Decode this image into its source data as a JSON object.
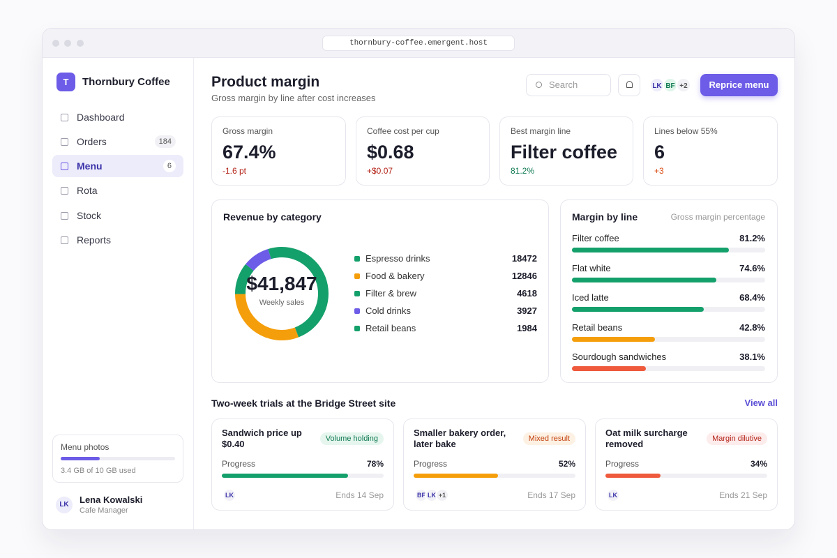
{
  "browser": {
    "url": "thornbury-coffee.emergent.host"
  },
  "sidebar": {
    "brand_initial": "T",
    "brand": "Thornbury Coffee",
    "nav": [
      {
        "label": "Dashboard"
      },
      {
        "label": "Orders",
        "badge": 184
      },
      {
        "label": "Menu",
        "badge": 6,
        "active": true
      },
      {
        "label": "Rota"
      },
      {
        "label": "Stock"
      },
      {
        "label": "Reports"
      }
    ],
    "storage": {
      "title": "Menu photos",
      "used": 3.4,
      "total": 10,
      "label": "3.4 GB of 10 GB used"
    },
    "user": {
      "initials": "LK",
      "name": "Lena Kowalski",
      "role": "Cafe Manager"
    }
  },
  "header": {
    "title": "Product margin",
    "subtitle": "Gross margin by line after cost increases",
    "search_placeholder": "Search",
    "avatars": [
      "LK",
      "BF"
    ],
    "avatar_more": "+2",
    "button": "Reprice menu"
  },
  "kpis": [
    {
      "label": "Gross margin",
      "value": "67.4%",
      "delta": "-1.6 pt",
      "delta_color": "#b42318"
    },
    {
      "label": "Coffee cost per cup",
      "value": "$0.68",
      "delta": "+$0.07",
      "delta_color": "#b42318"
    },
    {
      "label": "Best margin line",
      "value": "Filter coffee",
      "delta": "81.2%",
      "delta_color": "#0f7a52"
    },
    {
      "label": "Lines below 55%",
      "value": "6",
      "delta": "+3",
      "delta_color": "#d9480f"
    }
  ],
  "revenue": {
    "title": "Revenue by category",
    "total": "$41,847",
    "total_label": "Weekly sales",
    "categories": [
      {
        "name": "Espresso drinks",
        "value": 18472,
        "color": "#14a06b"
      },
      {
        "name": "Food & bakery",
        "value": 12846,
        "color": "#f59e0b"
      },
      {
        "name": "Filter & brew",
        "value": 4618,
        "color": "#14a06b"
      },
      {
        "name": "Cold drinks",
        "value": 3927,
        "color": "#6c5ce7"
      },
      {
        "name": "Retail beans",
        "value": 1984,
        "color": "#14a06b"
      }
    ]
  },
  "margin": {
    "title": "Margin by line",
    "subtitle": "Gross margin percentage",
    "xlim": [
      0,
      100
    ],
    "lines": [
      {
        "name": "Filter coffee",
        "value": 81.2,
        "label": "81.2%",
        "color": "#14a06b"
      },
      {
        "name": "Flat white",
        "value": 74.6,
        "label": "74.6%",
        "color": "#14a06b"
      },
      {
        "name": "Iced latte",
        "value": 68.4,
        "label": "68.4%",
        "color": "#14a06b"
      },
      {
        "name": "Retail beans",
        "value": 42.8,
        "label": "42.8%",
        "color": "#f59e0b"
      },
      {
        "name": "Sourdough sandwiches",
        "value": 38.1,
        "label": "38.1%",
        "color": "#ef5a3c"
      }
    ]
  },
  "trials": {
    "title": "Two-week trials at the Bridge Street site",
    "link": "View all",
    "xlim": [
      0,
      100
    ],
    "items": [
      {
        "title": "Sandwich price up $0.40",
        "status": "Volume holding",
        "tone": "positive",
        "progress_label": "Progress",
        "progress": 78,
        "progress_text": "78%",
        "color": "#14a06b",
        "avatars": [
          "LK"
        ],
        "ends": "Ends 14 Sep"
      },
      {
        "title": "Smaller bakery order, later bake",
        "status": "Mixed result",
        "tone": "mixed",
        "progress_label": "Progress",
        "progress": 52,
        "progress_text": "52%",
        "color": "#f59e0b",
        "avatars": [
          "BF",
          "LK"
        ],
        "more": "+1",
        "ends": "Ends 17 Sep"
      },
      {
        "title": "Oat milk surcharge removed",
        "status": "Margin dilutive",
        "tone": "negative",
        "progress_label": "Progress",
        "progress": 34,
        "progress_text": "34%",
        "color": "#ef5a3c",
        "avatars": [
          "LK"
        ],
        "ends": "Ends 21 Sep"
      }
    ]
  }
}
